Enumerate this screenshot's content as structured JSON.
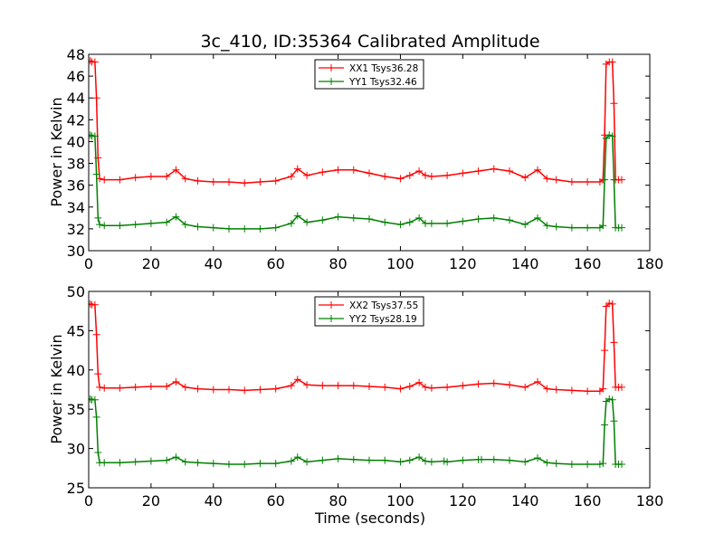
{
  "chart_data": [
    {
      "type": "line",
      "title": "3c_410, ID:35364 Calibrated Amplitude",
      "xlabel": "",
      "ylabel": "Power in Kelvin",
      "xlim": [
        0,
        180
      ],
      "ylim": [
        30,
        48
      ],
      "xticks": [
        0,
        20,
        40,
        60,
        80,
        100,
        120,
        140,
        160,
        180
      ],
      "yticks": [
        30,
        32,
        34,
        36,
        38,
        40,
        42,
        44,
        46,
        48
      ],
      "grid": false,
      "legend_position": "top-center",
      "series": [
        {
          "name": "XX1 Tsys36.28",
          "color": "#ff0000",
          "x": [
            0.5,
            1,
            2,
            2.5,
            3,
            3.5,
            5,
            10,
            15,
            20,
            25,
            28,
            31,
            35,
            40,
            45,
            50,
            55,
            60,
            65,
            67,
            70,
            75,
            80,
            85,
            90,
            95,
            100,
            103,
            106,
            108,
            110,
            115,
            120,
            125,
            130,
            135,
            140,
            144,
            147,
            150,
            155,
            160,
            164,
            165,
            165.5,
            166,
            167,
            168,
            168.5,
            169,
            170,
            171
          ],
          "y": [
            47.4,
            47.3,
            47.3,
            44,
            38.5,
            36.6,
            36.5,
            36.5,
            36.7,
            36.8,
            36.8,
            37.4,
            36.6,
            36.4,
            36.3,
            36.3,
            36.2,
            36.3,
            36.4,
            36.8,
            37.5,
            36.9,
            37.2,
            37.4,
            37.4,
            37.1,
            36.8,
            36.6,
            36.9,
            37.3,
            36.9,
            36.8,
            36.9,
            37.1,
            37.3,
            37.5,
            37.3,
            36.7,
            37.4,
            36.6,
            36.5,
            36.3,
            36.3,
            36.3,
            36.5,
            40.6,
            47.1,
            47.3,
            47.3,
            43.5,
            36.5,
            36.5,
            36.5
          ]
        },
        {
          "name": "YY1 Tsys32.46",
          "color": "#008000",
          "x": [
            0.5,
            1,
            2,
            2.5,
            3,
            3.5,
            5,
            10,
            15,
            20,
            25,
            28,
            31,
            35,
            40,
            45,
            50,
            55,
            60,
            65,
            67,
            70,
            75,
            80,
            85,
            90,
            95,
            100,
            103,
            106,
            108,
            110,
            115,
            120,
            125,
            130,
            135,
            140,
            144,
            147,
            150,
            155,
            160,
            164,
            165,
            165.5,
            166,
            167,
            168,
            168.5,
            169,
            170,
            171
          ],
          "y": [
            40.6,
            40.5,
            40.5,
            37,
            33,
            32.4,
            32.3,
            32.3,
            32.4,
            32.5,
            32.6,
            33.1,
            32.4,
            32.2,
            32.1,
            32.0,
            32.0,
            32.0,
            32.1,
            32.5,
            33.2,
            32.6,
            32.8,
            33.1,
            33.0,
            32.9,
            32.6,
            32.4,
            32.6,
            33.0,
            32.5,
            32.5,
            32.5,
            32.7,
            32.9,
            33.0,
            32.8,
            32.4,
            33.0,
            32.3,
            32.2,
            32.1,
            32.1,
            32.1,
            32.3,
            36.5,
            40.3,
            40.6,
            40.5,
            36.5,
            32.1,
            32.1,
            32.1
          ]
        }
      ]
    },
    {
      "type": "line",
      "title": "",
      "xlabel": "Time (seconds)",
      "ylabel": "Power in Kelvin",
      "xlim": [
        0,
        180
      ],
      "ylim": [
        25,
        50
      ],
      "xticks": [
        0,
        20,
        40,
        60,
        80,
        100,
        120,
        140,
        160,
        180
      ],
      "yticks": [
        25,
        30,
        35,
        40,
        45,
        50
      ],
      "grid": false,
      "legend_position": "top-center",
      "series": [
        {
          "name": "XX2 Tsys37.55",
          "color": "#ff0000",
          "x": [
            0.5,
            1,
            2,
            2.5,
            3,
            3.5,
            5,
            10,
            15,
            20,
            25,
            28,
            31,
            35,
            40,
            45,
            50,
            55,
            60,
            65,
            67,
            70,
            75,
            80,
            85,
            90,
            95,
            100,
            103,
            106,
            108,
            110,
            115,
            120,
            125,
            130,
            135,
            140,
            144,
            147,
            150,
            155,
            160,
            164,
            165,
            165.5,
            166,
            167,
            168,
            168.5,
            169,
            170,
            171
          ],
          "y": [
            48.4,
            48.3,
            48.3,
            44.5,
            39.5,
            37.8,
            37.7,
            37.7,
            37.8,
            37.9,
            37.9,
            38.5,
            37.8,
            37.6,
            37.5,
            37.5,
            37.4,
            37.5,
            37.6,
            38.0,
            38.8,
            38.1,
            38.0,
            38.0,
            38.0,
            37.9,
            37.8,
            37.6,
            37.9,
            38.4,
            37.8,
            37.7,
            37.8,
            38.0,
            38.2,
            38.3,
            38.1,
            37.8,
            38.5,
            37.6,
            37.5,
            37.4,
            37.3,
            37.3,
            37.6,
            42.5,
            48.1,
            48.5,
            48.4,
            43.5,
            37.8,
            37.8,
            37.8
          ]
        },
        {
          "name": "YY2 Tsys28.19",
          "color": "#008000",
          "x": [
            0.5,
            1,
            2,
            2.5,
            3,
            3.5,
            5,
            10,
            15,
            20,
            25,
            28,
            31,
            35,
            40,
            45,
            50,
            55,
            60,
            65,
            67,
            70,
            75,
            80,
            85,
            90,
            95,
            100,
            103,
            106,
            108,
            110,
            114,
            115,
            120,
            125,
            126,
            130,
            135,
            140,
            144,
            147,
            150,
            155,
            160,
            164,
            165,
            165.5,
            166,
            167,
            168,
            168.5,
            169,
            170,
            171
          ],
          "y": [
            36.3,
            36.2,
            36.2,
            34,
            29.5,
            28.2,
            28.2,
            28.2,
            28.3,
            28.4,
            28.5,
            28.9,
            28.3,
            28.2,
            28.1,
            28.0,
            28.0,
            28.1,
            28.1,
            28.4,
            28.9,
            28.3,
            28.5,
            28.7,
            28.6,
            28.5,
            28.5,
            28.3,
            28.5,
            28.9,
            28.4,
            28.3,
            28.4,
            28.3,
            28.5,
            28.6,
            28.6,
            28.6,
            28.5,
            28.3,
            28.8,
            28.2,
            28.1,
            28.0,
            28.0,
            28.0,
            28.1,
            33.0,
            36.0,
            36.3,
            36.2,
            33.5,
            28.0,
            28.0,
            28.0
          ]
        }
      ]
    }
  ]
}
